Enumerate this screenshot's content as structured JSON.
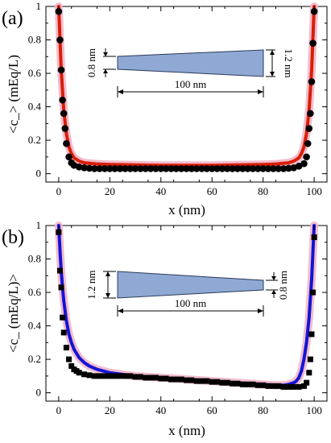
{
  "chart_data": [
    {
      "type": "line",
      "panel_label": "(a)",
      "xlabel": "x (nm)",
      "ylabel": "<c_> (mEq/L)",
      "xlim": [
        -5,
        105
      ],
      "ylim": [
        -0.05,
        1.0
      ],
      "x_ticks": [
        0,
        20,
        40,
        60,
        80,
        100
      ],
      "y_ticks": [
        0,
        0.2,
        0.4,
        0.6,
        0.8,
        1
      ],
      "x_tick_labels": [
        "0",
        "20",
        "40",
        "60",
        "80",
        "100"
      ],
      "y_tick_labels": [
        "0",
        "0.2",
        "0.4",
        "0.6",
        "0.8",
        "1"
      ],
      "grid": false,
      "series": [
        {
          "marker": "circle",
          "color": "#000000",
          "x": [
            0,
            0.5,
            1,
            1.5,
            2,
            2.5,
            3,
            4,
            5,
            6,
            8,
            10,
            12,
            14,
            16,
            18,
            20,
            22,
            24,
            26,
            28,
            30,
            32,
            34,
            36,
            38,
            40,
            42,
            44,
            46,
            48,
            50,
            52,
            54,
            56,
            58,
            60,
            62,
            64,
            66,
            68,
            70,
            72,
            74,
            76,
            78,
            80,
            82,
            84,
            86,
            88,
            90,
            92,
            94,
            96,
            97,
            97.5,
            98,
            98.5,
            99,
            99.5,
            100
          ],
          "y": [
            0.97,
            0.8,
            0.62,
            0.44,
            0.36,
            0.27,
            0.18,
            0.1,
            0.065,
            0.05,
            0.04,
            0.035,
            0.032,
            0.03,
            0.03,
            0.03,
            0.03,
            0.03,
            0.03,
            0.03,
            0.03,
            0.03,
            0.03,
            0.03,
            0.03,
            0.03,
            0.03,
            0.03,
            0.03,
            0.03,
            0.03,
            0.03,
            0.03,
            0.03,
            0.03,
            0.03,
            0.03,
            0.03,
            0.03,
            0.03,
            0.03,
            0.03,
            0.03,
            0.03,
            0.03,
            0.03,
            0.03,
            0.03,
            0.03,
            0.03,
            0.03,
            0.032,
            0.035,
            0.045,
            0.06,
            0.1,
            0.18,
            0.27,
            0.36,
            0.55,
            0.78,
            0.97
          ]
        },
        {
          "line": "solid",
          "color": "#d81e05",
          "glow": "#f2b6c8",
          "x": [
            0,
            1,
            2,
            3,
            4,
            5,
            6,
            8,
            10,
            15,
            20,
            30,
            40,
            50,
            60,
            70,
            80,
            85,
            90,
            92,
            94,
            95,
            96,
            97,
            98,
            99,
            100
          ],
          "y": [
            1.0,
            0.62,
            0.38,
            0.24,
            0.16,
            0.12,
            0.095,
            0.075,
            0.065,
            0.058,
            0.055,
            0.052,
            0.05,
            0.05,
            0.05,
            0.052,
            0.055,
            0.058,
            0.065,
            0.075,
            0.095,
            0.12,
            0.16,
            0.24,
            0.38,
            0.62,
            1.0
          ]
        }
      ],
      "inset": {
        "left_label": "0.8 nm",
        "right_label": "1.2 nm",
        "length_label": "100 nm",
        "fill": "#8fa9d4",
        "narrow_side": "left"
      }
    },
    {
      "type": "line",
      "panel_label": "(b)",
      "xlabel": "x (nm)",
      "ylabel": "<c_ (mEq/L)>",
      "xlim": [
        -5,
        105
      ],
      "ylim": [
        -0.05,
        1.0
      ],
      "x_ticks": [
        0,
        20,
        40,
        60,
        80,
        100
      ],
      "y_ticks": [
        0,
        0.2,
        0.4,
        0.6,
        0.8,
        1
      ],
      "x_tick_labels": [
        "0",
        "20",
        "40",
        "60",
        "80",
        "100"
      ],
      "y_tick_labels": [
        "0",
        "0.2",
        "0.4",
        "0.6",
        "0.8",
        "1"
      ],
      "grid": false,
      "series": [
        {
          "marker": "square",
          "color": "#000000",
          "x": [
            0,
            0.5,
            1,
            1.5,
            2,
            3,
            4,
            5,
            6,
            7,
            8,
            10,
            12,
            14,
            16,
            18,
            20,
            22,
            24,
            26,
            28,
            30,
            32,
            34,
            36,
            38,
            40,
            42,
            44,
            46,
            48,
            50,
            52,
            54,
            56,
            58,
            60,
            62,
            64,
            66,
            68,
            70,
            72,
            74,
            76,
            78,
            80,
            82,
            84,
            86,
            88,
            90,
            92,
            94,
            96,
            97,
            98,
            98.5,
            99,
            99.5,
            100
          ],
          "y": [
            0.96,
            0.73,
            0.63,
            0.45,
            0.36,
            0.27,
            0.2,
            0.16,
            0.14,
            0.13,
            0.12,
            0.11,
            0.105,
            0.1,
            0.1,
            0.1,
            0.1,
            0.1,
            0.1,
            0.1,
            0.1,
            0.095,
            0.095,
            0.09,
            0.09,
            0.09,
            0.085,
            0.085,
            0.08,
            0.08,
            0.08,
            0.075,
            0.075,
            0.07,
            0.07,
            0.07,
            0.065,
            0.065,
            0.06,
            0.06,
            0.055,
            0.055,
            0.05,
            0.05,
            0.05,
            0.045,
            0.045,
            0.04,
            0.04,
            0.04,
            0.035,
            0.035,
            0.035,
            0.035,
            0.04,
            0.06,
            0.12,
            0.2,
            0.35,
            0.6,
            0.93
          ]
        },
        {
          "line": "solid",
          "color": "#1414d6",
          "glow": "#f2b6c8",
          "x": [
            0,
            0.5,
            1,
            1.5,
            2,
            3,
            4,
            5,
            6,
            8,
            10,
            12,
            15,
            20,
            25,
            30,
            40,
            50,
            60,
            70,
            80,
            85,
            88,
            90,
            92,
            93,
            94,
            95,
            96,
            97,
            98,
            99,
            100
          ],
          "y": [
            1.0,
            0.85,
            0.73,
            0.63,
            0.55,
            0.43,
            0.35,
            0.3,
            0.26,
            0.21,
            0.18,
            0.16,
            0.14,
            0.12,
            0.11,
            0.1,
            0.09,
            0.08,
            0.07,
            0.06,
            0.05,
            0.045,
            0.045,
            0.05,
            0.06,
            0.07,
            0.09,
            0.13,
            0.2,
            0.3,
            0.45,
            0.68,
            1.0
          ]
        }
      ],
      "inset": {
        "left_label": "1.2 nm",
        "right_label": "0.8 nm",
        "length_label": "100 nm",
        "fill": "#8fa9d4",
        "narrow_side": "right"
      }
    }
  ]
}
